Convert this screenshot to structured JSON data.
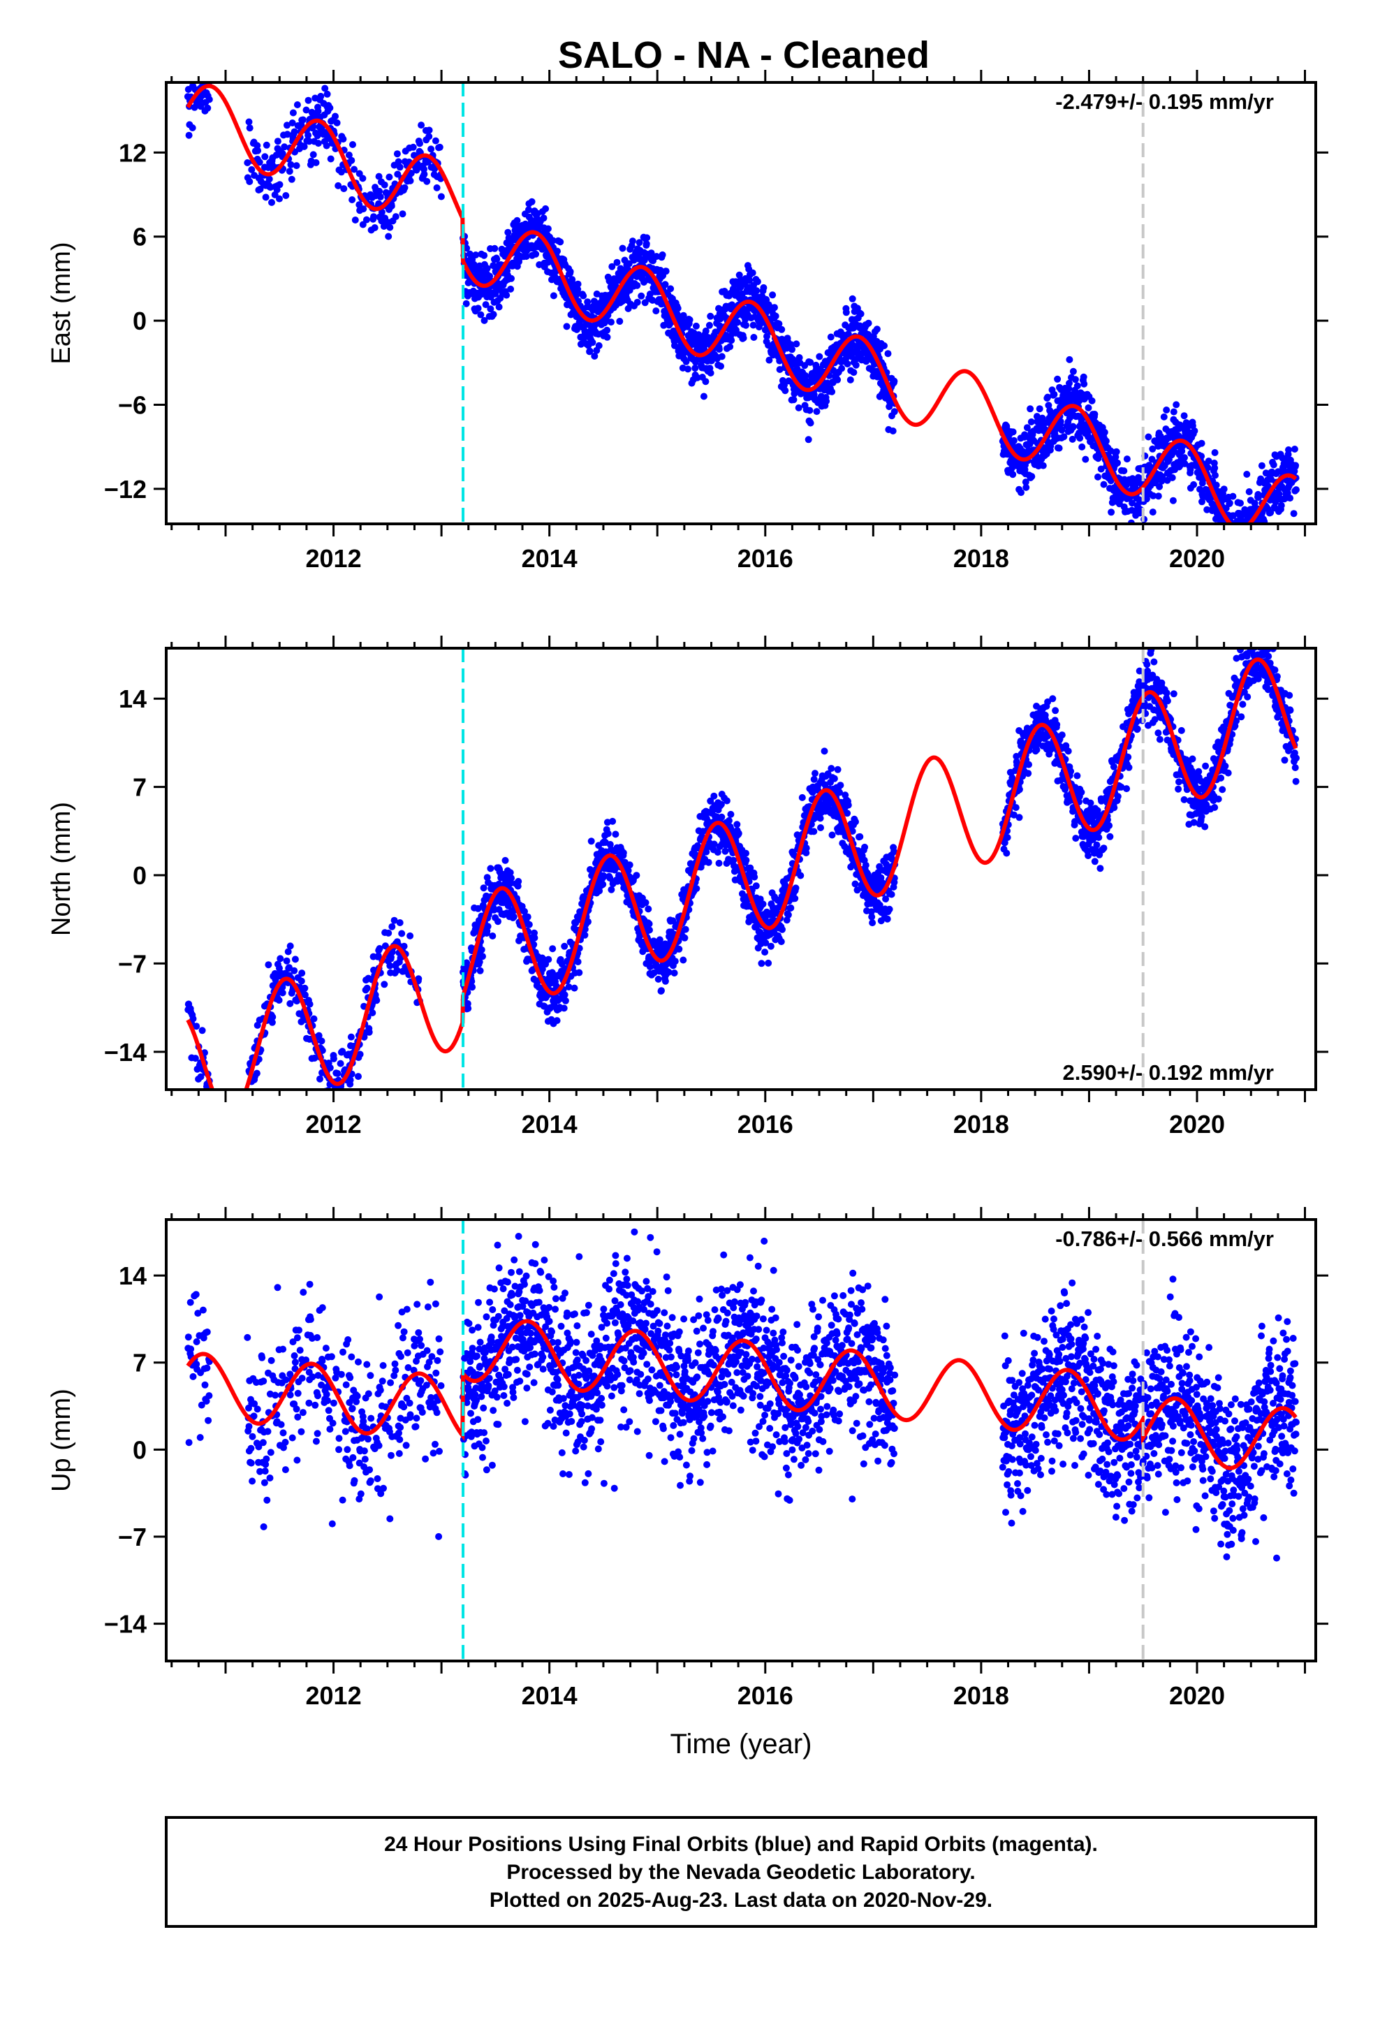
{
  "title": "SALO  - NA - Cleaned",
  "footer": {
    "lines": [
      "24 Hour Positions Using Final Orbits (blue) and Rapid Orbits (magenta).",
      "Processed by the Nevada Geodetic Laboratory.",
      "Plotted on 2025-Aug-23. Last data on 2020-Nov-29."
    ]
  },
  "colors": {
    "points": "#0000ff",
    "model": "#ff0000",
    "equipment_change_line": "#00e5e5",
    "earthquake_line": "#c8c8c8"
  },
  "chart_data": [
    {
      "type": "scatter",
      "panel": "east",
      "xlabel": "",
      "ylabel": "East (mm)",
      "xlim": [
        2010.45,
        2021.1
      ],
      "ylim": [
        -14.5,
        17
      ],
      "xticks": [
        2012,
        2014,
        2016,
        2018,
        2020
      ],
      "yticks": [
        12,
        6,
        0,
        -6,
        -12
      ],
      "ytick_labels": [
        "12",
        "6",
        "0",
        "−6",
        "−12"
      ],
      "rate_label": "-2.479+/- 0.195 mm/yr",
      "rate_position": "top-right",
      "vertical_lines": [
        {
          "x": 2013.2,
          "style": "dashed",
          "color": "cyan"
        },
        {
          "x": 2019.5,
          "style": "dashed",
          "color": "gray"
        }
      ],
      "model": {
        "trend_mm_per_yr": -2.479,
        "intercept_2016": 1.5,
        "annual_amplitude": 2.5,
        "annual_phase_year": 0.87,
        "steps": [
          {
            "x": 2013.2,
            "offset": -3.0
          }
        ]
      },
      "scatter_series": {
        "name": "",
        "scatter_mm": 1.1,
        "data_intervals": [
          [
            2010.65,
            2010.85
          ],
          [
            2011.2,
            2013.0
          ],
          [
            2013.2,
            2017.2
          ],
          [
            2018.2,
            2020.92
          ]
        ]
      }
    },
    {
      "type": "scatter",
      "panel": "north",
      "xlabel": "",
      "ylabel": "North (mm)",
      "xlim": [
        2010.45,
        2021.1
      ],
      "ylim": [
        -17,
        18
      ],
      "xticks": [
        2012,
        2014,
        2016,
        2018,
        2020
      ],
      "yticks": [
        14,
        7,
        0,
        -7,
        -14
      ],
      "ytick_labels": [
        "14",
        "7",
        "0",
        "−7",
        "−14"
      ],
      "rate_label": "2.590+/- 0.192 mm/yr",
      "rate_position": "bottom-right",
      "vertical_lines": [
        {
          "x": 2013.2,
          "style": "dashed",
          "color": "cyan"
        },
        {
          "x": 2019.5,
          "style": "dashed",
          "color": "gray"
        }
      ],
      "model": {
        "trend_mm_per_yr": 2.59,
        "intercept_2016": -1.5,
        "annual_amplitude": 4.8,
        "annual_phase_year": 0.55,
        "steps": [
          {
            "x": 2013.2,
            "offset": 2.0
          }
        ]
      },
      "scatter_series": {
        "name": "",
        "scatter_mm": 1.2,
        "data_intervals": [
          [
            2010.65,
            2010.85
          ],
          [
            2011.2,
            2012.8
          ],
          [
            2013.2,
            2017.2
          ],
          [
            2018.2,
            2020.92
          ]
        ]
      }
    },
    {
      "type": "scatter",
      "panel": "up",
      "xlabel": "Time (year)",
      "ylabel": "Up (mm)",
      "xlim": [
        2010.45,
        2021.1
      ],
      "ylim": [
        -17,
        18.5
      ],
      "xticks": [
        2012,
        2014,
        2016,
        2018,
        2020
      ],
      "yticks": [
        14,
        7,
        0,
        -7,
        -14
      ],
      "ytick_labels": [
        "14",
        "7",
        "0",
        "−7",
        "−14"
      ],
      "rate_label": "-0.786+/- 0.566 mm/yr",
      "rate_position": "top-right",
      "vertical_lines": [
        {
          "x": 2013.2,
          "style": "dashed",
          "color": "cyan"
        },
        {
          "x": 2019.5,
          "style": "dashed",
          "color": "gray"
        }
      ],
      "model": {
        "trend_mm_per_yr": -0.786,
        "intercept_2016": 1.0,
        "annual_amplitude": 2.6,
        "annual_phase_year": 0.8,
        "steps": [
          {
            "x": 2013.2,
            "offset": 5.0
          },
          {
            "x": 2019.5,
            "offset": -1.5
          }
        ]
      },
      "scatter_series": {
        "name": "",
        "scatter_mm": 3.2,
        "data_intervals": [
          [
            2010.65,
            2010.85
          ],
          [
            2011.2,
            2013.0
          ],
          [
            2013.2,
            2017.2
          ],
          [
            2018.2,
            2020.92
          ]
        ]
      }
    }
  ]
}
